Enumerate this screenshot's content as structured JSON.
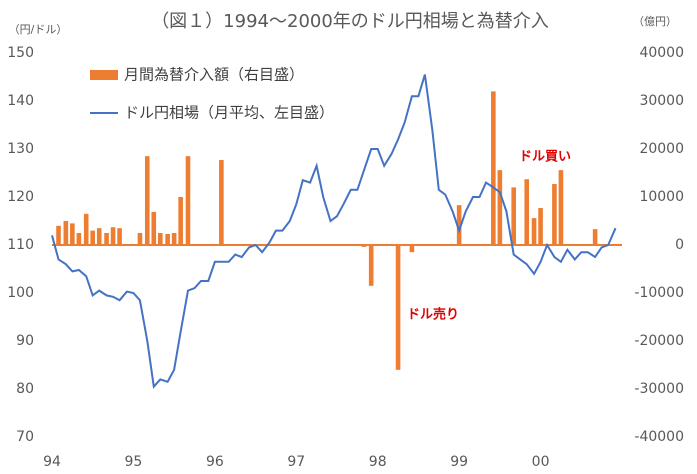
{
  "chart_data": {
    "type": "bar-line",
    "title": "（図１）1994～2000年のドル円相場と為替介入",
    "y_label": "（円/ドル）",
    "y2_label": "（億円）",
    "x": [
      94,
      94.08,
      94.17,
      94.25,
      94.33,
      94.42,
      94.5,
      94.58,
      94.67,
      94.75,
      94.83,
      94.92,
      95,
      95.08,
      95.17,
      95.25,
      95.33,
      95.42,
      95.5,
      95.58,
      95.67,
      95.75,
      95.83,
      95.92,
      96,
      96.08,
      96.17,
      96.25,
      96.33,
      96.42,
      96.5,
      96.58,
      96.67,
      96.75,
      96.83,
      96.92,
      97,
      97.08,
      97.17,
      97.25,
      97.33,
      97.42,
      97.5,
      97.58,
      97.67,
      97.75,
      97.83,
      97.92,
      98,
      98.08,
      98.17,
      98.25,
      98.33,
      98.42,
      98.5,
      98.58,
      98.67,
      98.75,
      98.83,
      98.92,
      99,
      99.08,
      99.17,
      99.25,
      99.33,
      99.42,
      99.5,
      99.58,
      99.67,
      99.75,
      99.83,
      99.92,
      100,
      100.08,
      100.17,
      100.25,
      100.33,
      100.42,
      100.5,
      100.58,
      100.67,
      100.75,
      100.83,
      100.92
    ],
    "series": [
      {
        "name": "月間為替介入額（右目盛）",
        "type": "bar",
        "axis": "y2",
        "color": "#ed7d31",
        "values": [
          0,
          4000,
          5000,
          4500,
          2500,
          6500,
          3000,
          3500,
          2500,
          3700,
          3500,
          0,
          0,
          2500,
          18500,
          6900,
          2500,
          2300,
          2500,
          10000,
          18500,
          0,
          0,
          0,
          0,
          17700,
          0,
          0,
          0,
          0,
          0,
          0,
          0,
          0,
          0,
          0,
          0,
          0,
          0,
          0,
          0,
          0,
          0,
          0,
          0,
          0,
          -400,
          -8500,
          0,
          0,
          0,
          -26000,
          0,
          -1500,
          0,
          0,
          0,
          0,
          0,
          0,
          8300,
          0,
          0,
          0,
          0,
          32000,
          15600,
          0,
          12000,
          0,
          13700,
          5600,
          7700,
          0,
          12700,
          15600,
          0,
          0,
          0,
          0,
          3300,
          0,
          0,
          0
        ]
      },
      {
        "name": "ドル円相場（月平均、左目盛）",
        "type": "line",
        "color": "#4472c4",
        "values": [
          112,
          107,
          106,
          104.5,
          104.8,
          103.5,
          99.5,
          100.5,
          99.5,
          99.2,
          98.5,
          100.3,
          100,
          98.5,
          90,
          80.5,
          82,
          81.5,
          84,
          92,
          100.5,
          101,
          102.5,
          102.5,
          106.5,
          106.5,
          106.5,
          108,
          107.5,
          109.5,
          110,
          108.5,
          110.5,
          113,
          113,
          115,
          118.5,
          123.5,
          123,
          126.5,
          120,
          115,
          116,
          118.5,
          121.5,
          121.5,
          125.5,
          130,
          130,
          126.5,
          129,
          132,
          135.5,
          141,
          141,
          145.5,
          134,
          121.5,
          120.5,
          117,
          113,
          117,
          120,
          120,
          123,
          122,
          121,
          117,
          108,
          107,
          106,
          104,
          106.5,
          110,
          107.5,
          106.5,
          109,
          107,
          108.5,
          108.5,
          107.5,
          109.5,
          110,
          113.5
        ]
      }
    ],
    "annotations": [
      {
        "text": "ドル買い",
        "color": "#e00000"
      },
      {
        "text": "ドル売り",
        "color": "#e00000"
      }
    ],
    "xlim": [
      94,
      101
    ],
    "xticks": [
      94,
      95,
      96,
      97,
      98,
      99,
      {
        "value": 100,
        "label": "00"
      }
    ],
    "ylim": [
      70,
      150
    ],
    "yticks": [
      70,
      80,
      90,
      100,
      110,
      120,
      130,
      140,
      150
    ],
    "y2lim": [
      -40000,
      40000
    ],
    "y2ticks": [
      -40000,
      -30000,
      -20000,
      -10000,
      0,
      10000,
      20000,
      30000,
      40000
    ],
    "grid": false
  }
}
